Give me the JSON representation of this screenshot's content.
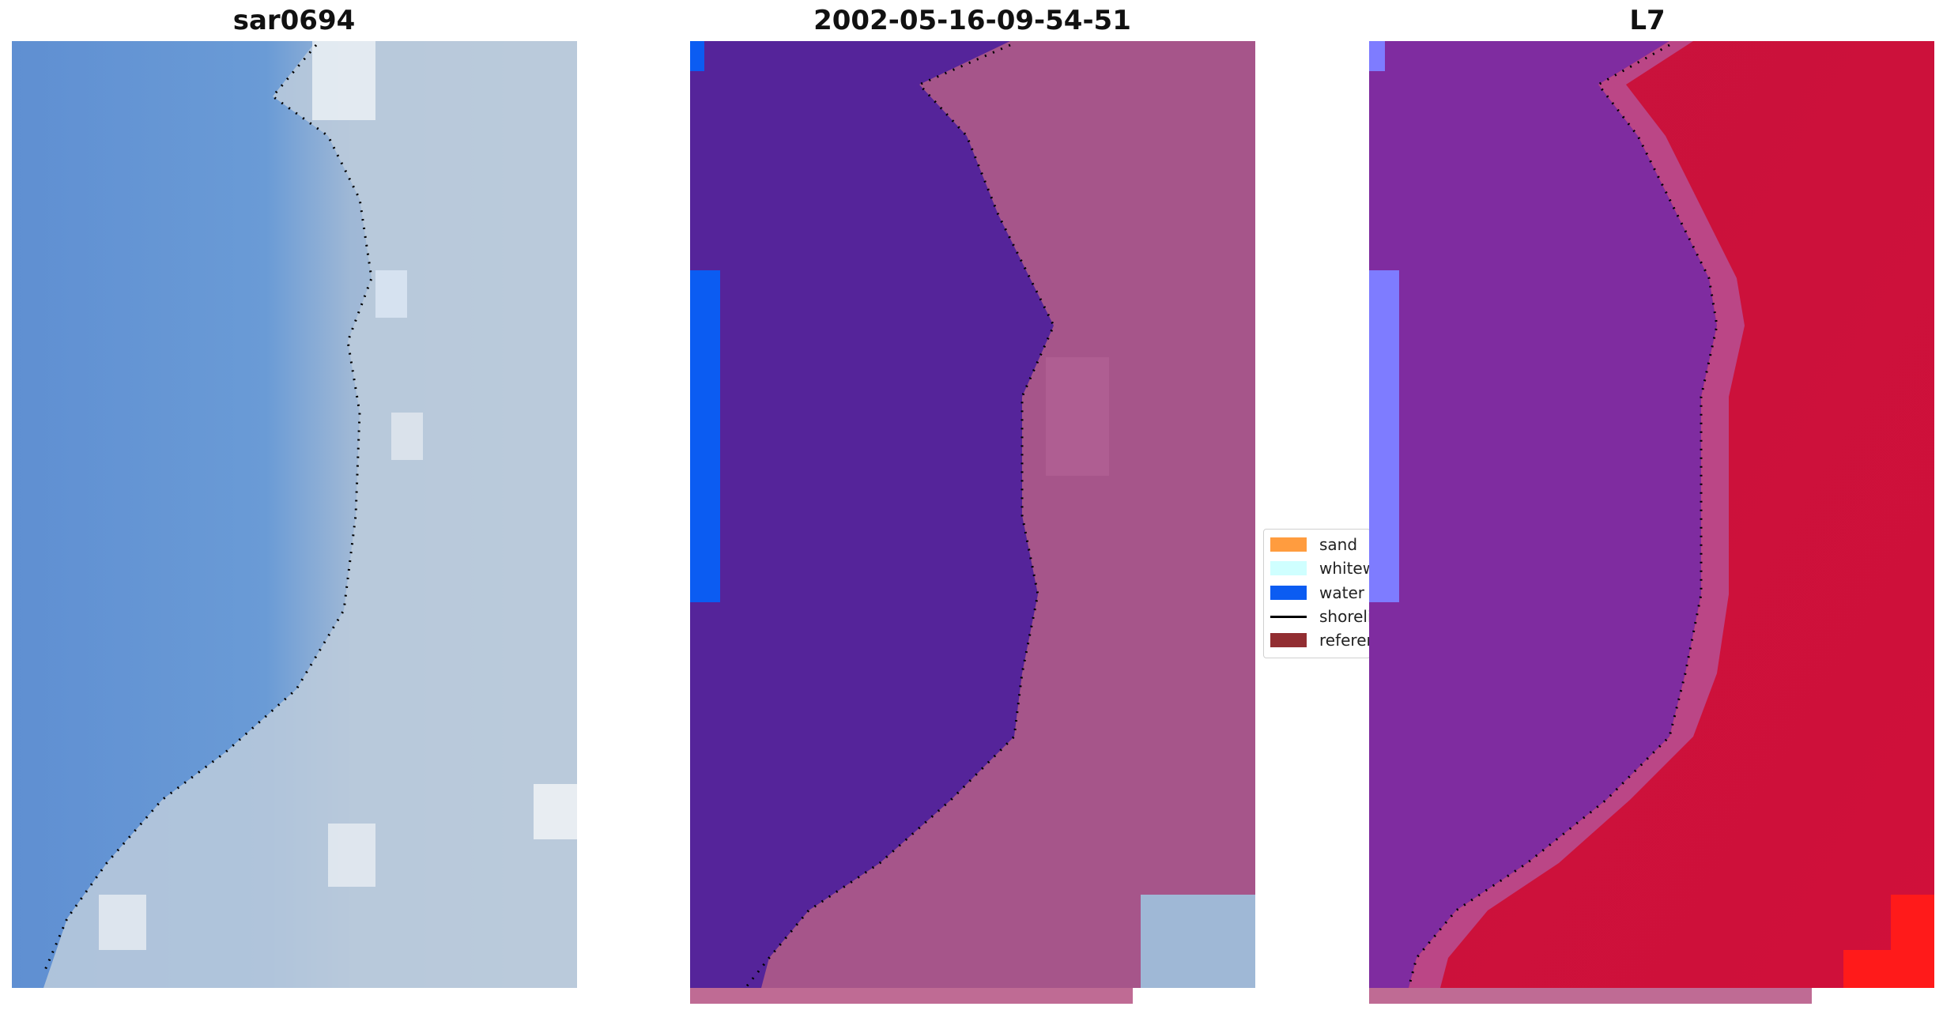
{
  "panels": [
    {
      "title": "sar0694"
    },
    {
      "title": "2002-05-16-09-54-51"
    },
    {
      "title": "L7"
    }
  ],
  "legend": {
    "items": [
      {
        "label": "sand",
        "color": "#ff9c3f",
        "kind": "patch"
      },
      {
        "label": "whitewater",
        "color": "#cfffff",
        "kind": "patch"
      },
      {
        "label": "water",
        "color": "#0b5cf2",
        "kind": "patch"
      },
      {
        "label": "shoreline",
        "color": "#000000",
        "kind": "line"
      },
      {
        "label": "reference shoreline",
        "color": "#922e32",
        "kind": "patch"
      }
    ]
  },
  "colors": {
    "water_class": "#55249a",
    "land_class": "#a6558a",
    "sea_rgb": "#6b96d4",
    "beach_rgb": "#b8c8d8",
    "l7_water": "#7f2ca0",
    "l7_land": "#c6143e",
    "pink_bar": "#bf6b94"
  }
}
